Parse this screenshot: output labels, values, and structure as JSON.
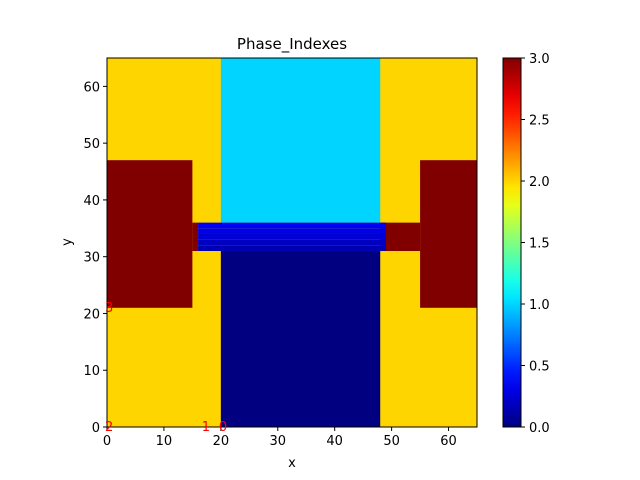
{
  "chart_data": {
    "type": "heatmap",
    "title": "Phase_Indexes",
    "xlabel": "x",
    "ylabel": "y",
    "xlim": [
      0,
      65
    ],
    "ylim": [
      0,
      65
    ],
    "x_ticks": [
      0,
      10,
      20,
      30,
      40,
      50,
      60
    ],
    "y_ticks": [
      0,
      10,
      20,
      30,
      40,
      50,
      60
    ],
    "colormap": "jet",
    "vmin": 0.0,
    "vmax": 3.0,
    "colorbar_ticks": [
      "0.0",
      "0.5",
      "1.0",
      "1.5",
      "2.0",
      "2.5",
      "3.0"
    ],
    "regions": [
      {
        "phase": 2,
        "x": [
          0,
          65
        ],
        "y": [
          0,
          65
        ]
      },
      {
        "phase": 3,
        "x": [
          0,
          15
        ],
        "y": [
          21,
          47
        ]
      },
      {
        "phase": 3,
        "x": [
          55,
          65
        ],
        "y": [
          21,
          47
        ]
      },
      {
        "phase": 3,
        "x": [
          15,
          16
        ],
        "y": [
          31,
          36
        ]
      },
      {
        "phase": 3,
        "x": [
          48,
          55
        ],
        "y": [
          31,
          36
        ]
      },
      {
        "phase": 1,
        "x": [
          20,
          48
        ],
        "y": [
          36,
          65
        ]
      },
      {
        "phase": 0,
        "x": [
          20,
          48
        ],
        "y": [
          0,
          31
        ]
      },
      {
        "phase": 0.15,
        "x": [
          16,
          49
        ],
        "y": [
          31,
          32
        ]
      },
      {
        "phase": 0.2,
        "x": [
          16,
          49
        ],
        "y": [
          32,
          33
        ]
      },
      {
        "phase": 0.25,
        "x": [
          16,
          49
        ],
        "y": [
          33,
          34
        ]
      },
      {
        "phase": 0.3,
        "x": [
          16,
          49
        ],
        "y": [
          34,
          35
        ]
      },
      {
        "phase": 0.35,
        "x": [
          16,
          49
        ],
        "y": [
          35,
          36
        ]
      }
    ],
    "annotations": [
      {
        "text": "3",
        "x": 0,
        "y": 21
      },
      {
        "text": "2",
        "x": 0,
        "y": 0
      },
      {
        "text": "1",
        "x": 17,
        "y": 0
      },
      {
        "text": "0",
        "x": 20,
        "y": 0
      }
    ]
  }
}
